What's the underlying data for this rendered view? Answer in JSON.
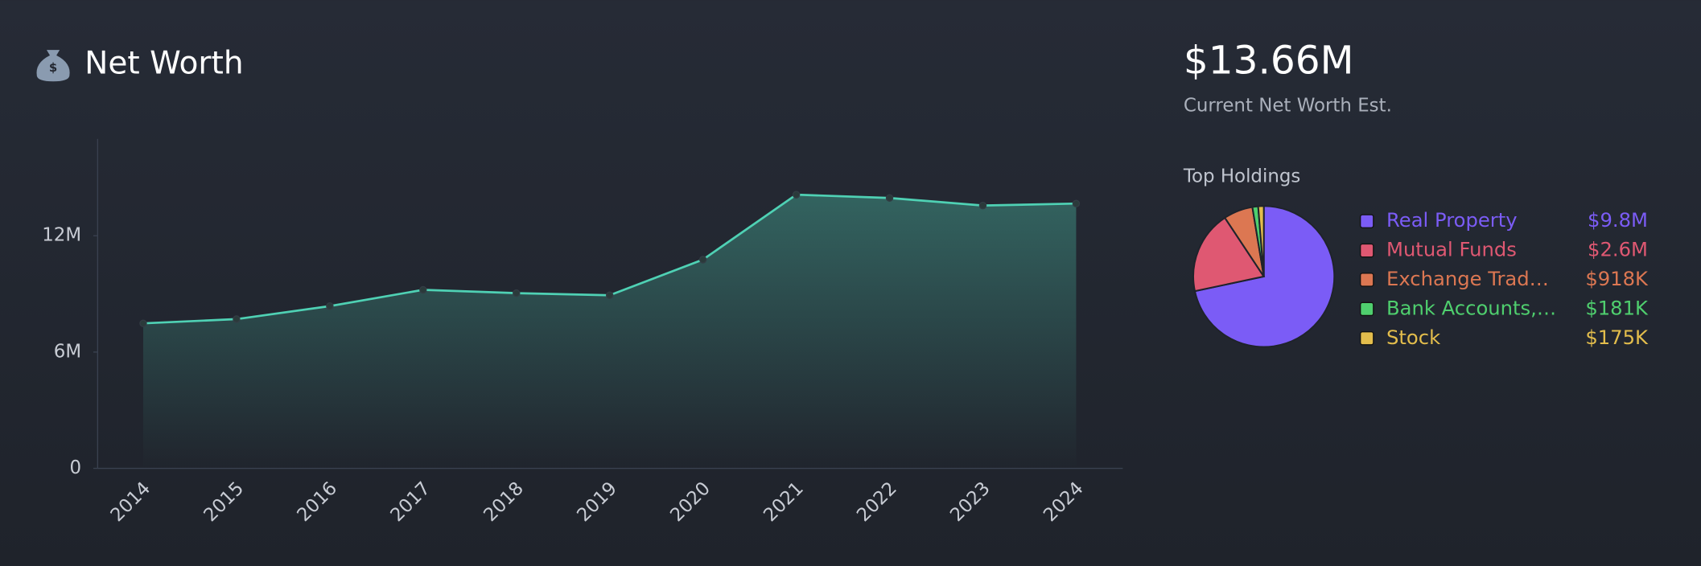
{
  "header": {
    "title": "Net Worth"
  },
  "summary": {
    "value": "$13.66M",
    "label": "Current Net Worth Est."
  },
  "chart_data": [
    {
      "type": "line",
      "categories": [
        "2014",
        "2015",
        "2016",
        "2017",
        "2018",
        "2019",
        "2020",
        "2021",
        "2022",
        "2023",
        "2024"
      ],
      "values": [
        7.48,
        7.7,
        8.37,
        9.21,
        9.04,
        8.93,
        10.77,
        14.12,
        13.95,
        13.56,
        13.66
      ],
      "color": "#4fd1b4",
      "ylim": [
        0,
        17
      ],
      "yticks": [
        0,
        {
          "value": 6,
          "label": "6M"
        },
        {
          "value": 12,
          "label": "12M"
        }
      ]
    },
    {
      "type": "pie",
      "title": "Top Holdings",
      "categories": [
        "Real Property",
        "Mutual Funds",
        "Exchange Trad…",
        "Bank Accounts,…",
        "Stock"
      ],
      "values": [
        9.8,
        2.6,
        0.918,
        0.181,
        0.175
      ],
      "value_labels": [
        "$9.8M",
        "$2.6M",
        "$918K",
        "$181K",
        "$175K"
      ],
      "colors": [
        "#7b5cf6",
        "#df5872",
        "#dc7752",
        "#4fcf6e",
        "#e3bd4c"
      ]
    }
  ]
}
